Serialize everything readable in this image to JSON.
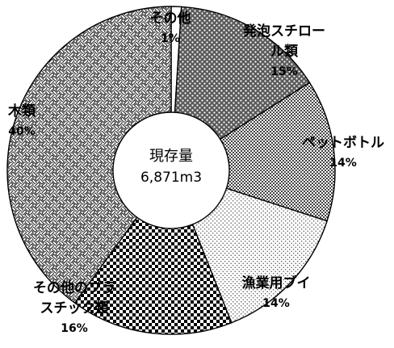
{
  "chart_data": {
    "type": "pie",
    "center_label": "現存量",
    "center_value": "6,871m3",
    "slices": [
      {
        "label_lines": [
          "その他"
        ],
        "percent_text": "1%",
        "value": 1,
        "pattern": "white"
      },
      {
        "label_lines": [
          "発泡スチロー",
          "ル類"
        ],
        "percent_text": "15%",
        "value": 15,
        "pattern": "dots-dense"
      },
      {
        "label_lines": [
          "ペットボトル"
        ],
        "percent_text": "14%",
        "value": 14,
        "pattern": "checker-fine"
      },
      {
        "label_lines": [
          "漁業用ブイ"
        ],
        "percent_text": "14%",
        "value": 14,
        "pattern": "dots-sparse"
      },
      {
        "label_lines": [
          "その他のプラ",
          "スチック類"
        ],
        "percent_text": "16%",
        "value": 16,
        "pattern": "checker-coarse"
      },
      {
        "label_lines": [
          "木類"
        ],
        "percent_text": "40%",
        "value": 40,
        "pattern": "weave"
      }
    ]
  }
}
